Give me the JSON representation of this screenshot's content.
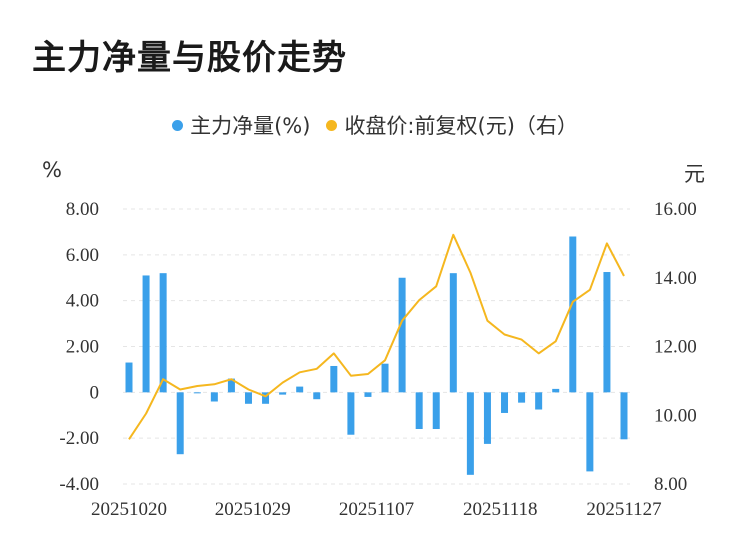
{
  "title": "主力净量与股价走势",
  "legend": {
    "series1": "主力净量(%)",
    "series2": "收盘价:前复权(元)（右）"
  },
  "units": {
    "left": "%",
    "right": "元"
  },
  "colors": {
    "bar": "#3aa0ea",
    "line": "#f5b71f",
    "grid": "#e5e5e5"
  },
  "chart_data": {
    "type": "bar+line",
    "x_tick_labels": [
      "20251020",
      "20251029",
      "20251107",
      "20251118",
      "20251127"
    ],
    "y_left": {
      "ticks": [
        "8.00",
        "6.00",
        "4.00",
        "2.00",
        "0",
        "-2.00",
        "-4.00"
      ],
      "ylim": [
        -4,
        8
      ]
    },
    "y_right": {
      "ticks": [
        "16.00",
        "14.00",
        "12.00",
        "10.00",
        "8.00"
      ],
      "ylim": [
        8,
        16
      ]
    },
    "series": [
      {
        "name": "主力净量(%)",
        "type": "bar",
        "values": [
          1.3,
          5.1,
          5.2,
          -2.7,
          0,
          -0.4,
          0.6,
          -0.5,
          -0.5,
          -0.1,
          0.25,
          -0.3,
          1.15,
          -1.85,
          -0.2,
          1.25,
          5.0,
          -1.6,
          -1.6,
          5.2,
          -3.6,
          -2.25,
          -0.9,
          -0.45,
          -0.75,
          0.15,
          6.8,
          -3.45,
          5.25,
          -2.05
        ]
      },
      {
        "name": "收盘价:前复权(元)（右）",
        "type": "line",
        "values": [
          9.3,
          10.05,
          11.05,
          10.75,
          10.85,
          10.9,
          11.05,
          10.75,
          10.55,
          10.95,
          11.25,
          11.35,
          11.8,
          11.15,
          11.2,
          11.6,
          12.75,
          13.35,
          13.75,
          15.25,
          14.15,
          12.75,
          12.35,
          12.2,
          11.8,
          12.15,
          13.3,
          13.65,
          15.0,
          14.05
        ]
      }
    ]
  }
}
